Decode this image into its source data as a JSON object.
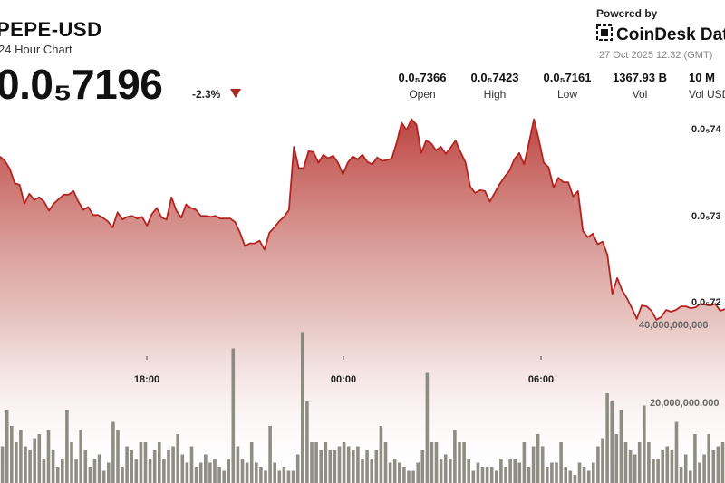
{
  "header": {
    "pair": "PEPE-USD",
    "period": "24 Hour Chart",
    "price": "0.0₅7196",
    "change": "-2.3%",
    "change_direction": "down",
    "down_color": "#b3231f"
  },
  "branding": {
    "powered_by": "Powered by",
    "name": "CoinDesk Data",
    "timestamp": "27 Oct 2025 12:32 (GMT)"
  },
  "stats": [
    {
      "value": "0.0₅7366",
      "label": "Open"
    },
    {
      "value": "0.0₅7423",
      "label": "High"
    },
    {
      "value": "0.0₅7161",
      "label": "Low"
    },
    {
      "value": "1367.93 B",
      "label": "Vol"
    },
    {
      "value": "10 M",
      "label": "Vol USD"
    }
  ],
  "chart_data": {
    "type": "area",
    "price_series": {
      "y_tick_labels": [
        "0.0₅74",
        "0.0₅73",
        "0.0₅72"
      ],
      "y_ticks": [
        7.4e-06,
        7.3e-06,
        7.2e-06
      ],
      "ylim": [
        7.15e-06,
        7.43e-06
      ],
      "values": [
        7.371,
        7.366,
        7.357,
        7.341,
        7.339,
        7.318,
        7.329,
        7.322,
        7.325,
        7.32,
        7.31,
        7.318,
        7.323,
        7.328,
        7.328,
        7.332,
        7.32,
        7.311,
        7.314,
        7.305,
        7.305,
        7.302,
        7.298,
        7.291,
        7.308,
        7.3,
        7.303,
        7.304,
        7.301,
        7.303,
        7.293,
        7.306,
        7.313,
        7.302,
        7.3,
        7.325,
        7.31,
        7.302,
        7.317,
        7.313,
        7.311,
        7.304,
        7.304,
        7.303,
        7.304,
        7.301,
        7.301,
        7.301,
        7.297,
        7.285,
        7.27,
        7.273,
        7.273,
        7.276,
        7.266,
        7.285,
        7.291,
        7.298,
        7.303,
        7.311,
        7.382,
        7.358,
        7.358,
        7.377,
        7.376,
        7.364,
        7.373,
        7.369,
        7.372,
        7.364,
        7.351,
        7.364,
        7.371,
        7.368,
        7.373,
        7.365,
        7.362,
        7.37,
        7.366,
        7.367,
        7.369,
        7.387,
        7.409,
        7.401,
        7.413,
        7.407,
        7.375,
        7.389,
        7.386,
        7.378,
        7.382,
        7.374,
        7.381,
        7.389,
        7.376,
        7.365,
        7.337,
        7.33,
        7.333,
        7.332,
        7.32,
        7.33,
        7.34,
        7.348,
        7.355,
        7.368,
        7.375,
        7.362,
        7.387,
        7.413,
        7.39,
        7.364,
        7.359,
        7.336,
        7.347,
        7.342,
        7.342,
        7.326,
        7.332,
        7.287,
        7.28,
        7.284,
        7.272,
        7.275,
        7.26,
        7.216,
        7.234,
        7.22,
        7.211,
        7.2,
        7.188,
        7.203,
        7.202,
        7.197,
        7.187,
        7.19,
        7.198,
        7.196,
        7.198,
        7.202,
        7.202,
        7.2,
        7.201,
        7.205,
        7.204,
        7.203,
        7.205,
        7.197,
        7.199
      ],
      "scale_note_values_in_units": "1e-6"
    },
    "volume_series": {
      "y_tick_labels": [
        "40,000,000,000",
        "20,000,000,000"
      ],
      "values_billions": [
        9,
        18,
        14,
        10,
        13,
        9,
        8,
        11,
        12,
        6,
        13,
        8,
        4,
        6,
        18,
        10,
        6,
        13,
        8,
        4,
        6,
        7,
        3,
        5,
        15,
        13,
        4,
        9,
        8,
        6,
        10,
        10,
        6,
        8,
        10,
        6,
        8,
        9,
        12,
        7,
        5,
        9,
        4,
        5,
        7,
        5,
        6,
        4,
        3,
        6,
        33,
        9,
        6,
        5,
        10,
        5,
        4,
        3,
        14,
        5,
        3,
        4,
        3,
        3,
        7,
        37,
        20,
        10,
        10,
        8,
        10,
        8,
        8,
        9,
        10,
        9,
        8,
        9,
        6,
        8,
        6,
        8,
        14,
        10,
        5,
        6,
        5,
        4,
        3,
        3,
        5,
        8,
        27,
        10,
        10,
        6,
        7,
        6,
        13,
        10,
        10,
        6,
        3,
        5,
        4,
        4,
        4,
        3,
        6,
        4,
        6,
        6,
        5,
        10,
        4,
        9,
        12,
        9,
        4,
        5,
        5,
        10,
        4,
        3,
        2,
        5,
        4,
        3,
        5,
        9,
        11,
        22,
        20,
        12,
        18,
        10,
        8,
        7,
        10,
        19,
        10,
        6,
        6,
        8,
        9,
        8,
        15,
        4,
        7,
        3,
        12,
        5,
        7,
        12,
        8,
        9,
        10
      ]
    },
    "x_tick_labels": [
      "18:00",
      "00:00",
      "06:00"
    ],
    "area_color": "#b3231f",
    "volume_color": "#7a7a70"
  }
}
